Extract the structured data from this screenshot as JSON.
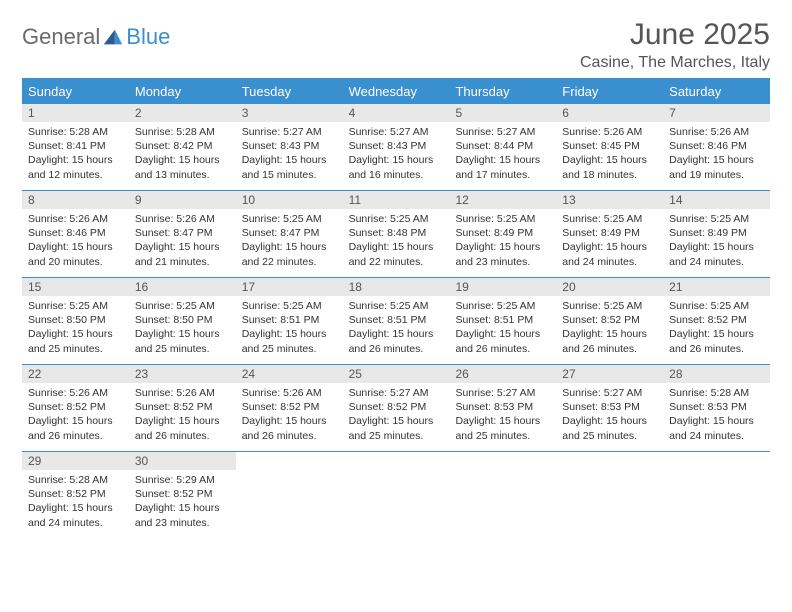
{
  "logo": {
    "text1": "General",
    "text2": "Blue"
  },
  "title": "June 2025",
  "location": "Casine, The Marches, Italy",
  "colors": {
    "header_bar": "#3a8fcf",
    "daynum_bg": "#e8e8e8",
    "text": "#333333",
    "title_text": "#555555",
    "logo_gray": "#6b6b6b",
    "logo_blue": "#3a8fcf",
    "background": "#ffffff"
  },
  "weekdays": [
    "Sunday",
    "Monday",
    "Tuesday",
    "Wednesday",
    "Thursday",
    "Friday",
    "Saturday"
  ],
  "weeks": [
    [
      {
        "n": "1",
        "sr": "Sunrise: 5:28 AM",
        "ss": "Sunset: 8:41 PM",
        "d1": "Daylight: 15 hours",
        "d2": "and 12 minutes."
      },
      {
        "n": "2",
        "sr": "Sunrise: 5:28 AM",
        "ss": "Sunset: 8:42 PM",
        "d1": "Daylight: 15 hours",
        "d2": "and 13 minutes."
      },
      {
        "n": "3",
        "sr": "Sunrise: 5:27 AM",
        "ss": "Sunset: 8:43 PM",
        "d1": "Daylight: 15 hours",
        "d2": "and 15 minutes."
      },
      {
        "n": "4",
        "sr": "Sunrise: 5:27 AM",
        "ss": "Sunset: 8:43 PM",
        "d1": "Daylight: 15 hours",
        "d2": "and 16 minutes."
      },
      {
        "n": "5",
        "sr": "Sunrise: 5:27 AM",
        "ss": "Sunset: 8:44 PM",
        "d1": "Daylight: 15 hours",
        "d2": "and 17 minutes."
      },
      {
        "n": "6",
        "sr": "Sunrise: 5:26 AM",
        "ss": "Sunset: 8:45 PM",
        "d1": "Daylight: 15 hours",
        "d2": "and 18 minutes."
      },
      {
        "n": "7",
        "sr": "Sunrise: 5:26 AM",
        "ss": "Sunset: 8:46 PM",
        "d1": "Daylight: 15 hours",
        "d2": "and 19 minutes."
      }
    ],
    [
      {
        "n": "8",
        "sr": "Sunrise: 5:26 AM",
        "ss": "Sunset: 8:46 PM",
        "d1": "Daylight: 15 hours",
        "d2": "and 20 minutes."
      },
      {
        "n": "9",
        "sr": "Sunrise: 5:26 AM",
        "ss": "Sunset: 8:47 PM",
        "d1": "Daylight: 15 hours",
        "d2": "and 21 minutes."
      },
      {
        "n": "10",
        "sr": "Sunrise: 5:25 AM",
        "ss": "Sunset: 8:47 PM",
        "d1": "Daylight: 15 hours",
        "d2": "and 22 minutes."
      },
      {
        "n": "11",
        "sr": "Sunrise: 5:25 AM",
        "ss": "Sunset: 8:48 PM",
        "d1": "Daylight: 15 hours",
        "d2": "and 22 minutes."
      },
      {
        "n": "12",
        "sr": "Sunrise: 5:25 AM",
        "ss": "Sunset: 8:49 PM",
        "d1": "Daylight: 15 hours",
        "d2": "and 23 minutes."
      },
      {
        "n": "13",
        "sr": "Sunrise: 5:25 AM",
        "ss": "Sunset: 8:49 PM",
        "d1": "Daylight: 15 hours",
        "d2": "and 24 minutes."
      },
      {
        "n": "14",
        "sr": "Sunrise: 5:25 AM",
        "ss": "Sunset: 8:49 PM",
        "d1": "Daylight: 15 hours",
        "d2": "and 24 minutes."
      }
    ],
    [
      {
        "n": "15",
        "sr": "Sunrise: 5:25 AM",
        "ss": "Sunset: 8:50 PM",
        "d1": "Daylight: 15 hours",
        "d2": "and 25 minutes."
      },
      {
        "n": "16",
        "sr": "Sunrise: 5:25 AM",
        "ss": "Sunset: 8:50 PM",
        "d1": "Daylight: 15 hours",
        "d2": "and 25 minutes."
      },
      {
        "n": "17",
        "sr": "Sunrise: 5:25 AM",
        "ss": "Sunset: 8:51 PM",
        "d1": "Daylight: 15 hours",
        "d2": "and 25 minutes."
      },
      {
        "n": "18",
        "sr": "Sunrise: 5:25 AM",
        "ss": "Sunset: 8:51 PM",
        "d1": "Daylight: 15 hours",
        "d2": "and 26 minutes."
      },
      {
        "n": "19",
        "sr": "Sunrise: 5:25 AM",
        "ss": "Sunset: 8:51 PM",
        "d1": "Daylight: 15 hours",
        "d2": "and 26 minutes."
      },
      {
        "n": "20",
        "sr": "Sunrise: 5:25 AM",
        "ss": "Sunset: 8:52 PM",
        "d1": "Daylight: 15 hours",
        "d2": "and 26 minutes."
      },
      {
        "n": "21",
        "sr": "Sunrise: 5:25 AM",
        "ss": "Sunset: 8:52 PM",
        "d1": "Daylight: 15 hours",
        "d2": "and 26 minutes."
      }
    ],
    [
      {
        "n": "22",
        "sr": "Sunrise: 5:26 AM",
        "ss": "Sunset: 8:52 PM",
        "d1": "Daylight: 15 hours",
        "d2": "and 26 minutes."
      },
      {
        "n": "23",
        "sr": "Sunrise: 5:26 AM",
        "ss": "Sunset: 8:52 PM",
        "d1": "Daylight: 15 hours",
        "d2": "and 26 minutes."
      },
      {
        "n": "24",
        "sr": "Sunrise: 5:26 AM",
        "ss": "Sunset: 8:52 PM",
        "d1": "Daylight: 15 hours",
        "d2": "and 26 minutes."
      },
      {
        "n": "25",
        "sr": "Sunrise: 5:27 AM",
        "ss": "Sunset: 8:52 PM",
        "d1": "Daylight: 15 hours",
        "d2": "and 25 minutes."
      },
      {
        "n": "26",
        "sr": "Sunrise: 5:27 AM",
        "ss": "Sunset: 8:53 PM",
        "d1": "Daylight: 15 hours",
        "d2": "and 25 minutes."
      },
      {
        "n": "27",
        "sr": "Sunrise: 5:27 AM",
        "ss": "Sunset: 8:53 PM",
        "d1": "Daylight: 15 hours",
        "d2": "and 25 minutes."
      },
      {
        "n": "28",
        "sr": "Sunrise: 5:28 AM",
        "ss": "Sunset: 8:53 PM",
        "d1": "Daylight: 15 hours",
        "d2": "and 24 minutes."
      }
    ],
    [
      {
        "n": "29",
        "sr": "Sunrise: 5:28 AM",
        "ss": "Sunset: 8:52 PM",
        "d1": "Daylight: 15 hours",
        "d2": "and 24 minutes."
      },
      {
        "n": "30",
        "sr": "Sunrise: 5:29 AM",
        "ss": "Sunset: 8:52 PM",
        "d1": "Daylight: 15 hours",
        "d2": "and 23 minutes."
      },
      {
        "empty": true
      },
      {
        "empty": true
      },
      {
        "empty": true
      },
      {
        "empty": true
      },
      {
        "empty": true
      }
    ]
  ]
}
